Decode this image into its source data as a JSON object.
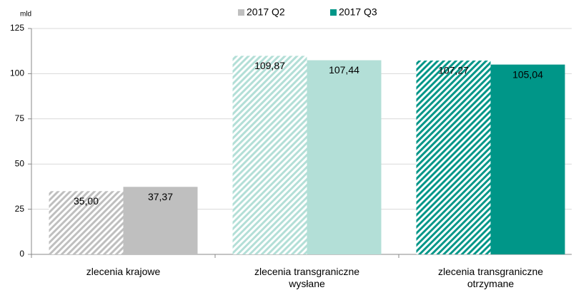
{
  "chart_data": {
    "type": "bar",
    "y_unit_label": "mld",
    "categories": [
      "zlecenia krajowe",
      "zlecenia transgraniczne\nwysłane",
      "zlecenia transgraniczne\notrzymane"
    ],
    "series": [
      {
        "name": "2017 Q2",
        "color": "#bfbfbf",
        "hatch": true,
        "bar_colors": [
          "#bfbfbf",
          "#b3dfd7",
          "#009688"
        ],
        "values": [
          35.0,
          109.87,
          107.27
        ],
        "value_labels": [
          "35,00",
          "109,87",
          "107,27"
        ]
      },
      {
        "name": "2017 Q3",
        "color": "#009688",
        "hatch": false,
        "bar_colors": [
          "#bfbfbf",
          "#b3dfd7",
          "#009688"
        ],
        "values": [
          37.37,
          107.44,
          105.04
        ],
        "value_labels": [
          "37,37",
          "107,44",
          "105,04"
        ]
      }
    ],
    "ylim": [
      0,
      125
    ],
    "yticks": [
      0,
      25,
      50,
      75,
      100,
      125
    ],
    "grid": true,
    "legend": "top"
  }
}
